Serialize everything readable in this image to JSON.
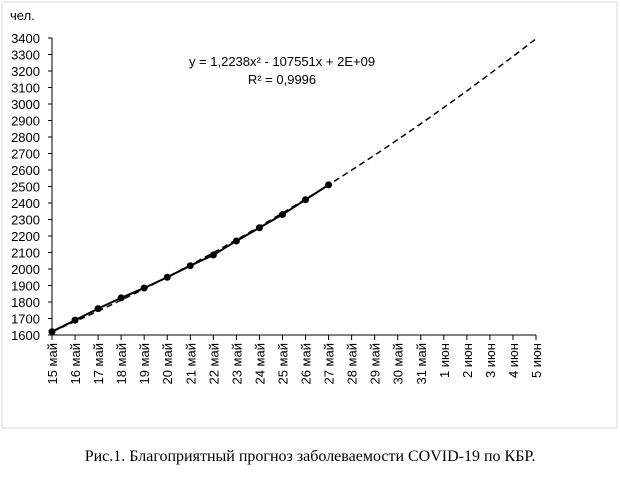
{
  "chart_data": {
    "type": "line",
    "y_label": "чел.",
    "caption": "Рис.1. Благоприятный прогноз заболеваемости COVID-19 по КБР.",
    "annotations": [
      "y = 1,2238x² - 107551x + 2E+09",
      "R² = 0,9996"
    ],
    "categories": [
      "15 май",
      "16 май",
      "17 май",
      "18 май",
      "19 май",
      "20 май",
      "21 май",
      "22 май",
      "23 май",
      "24 май",
      "25 май",
      "26 май",
      "27 май",
      "28 май",
      "29 май",
      "30 май",
      "31 май",
      "1 июн",
      "2 июн",
      "3 июн",
      "4 июн",
      "5 июн"
    ],
    "series": [
      {
        "color": "#000000",
        "values": [
          1620,
          1690,
          1760,
          1825,
          1885,
          1950,
          2020,
          2085,
          2170,
          2250,
          2330,
          2420,
          2510,
          null,
          null,
          null,
          null,
          null,
          null,
          null,
          null,
          null
        ]
      },
      {
        "color": "#000000",
        "dashed": true,
        "values": [
          1620,
          1682,
          1745,
          1811,
          1880,
          1951,
          2024,
          2099,
          2177,
          2257,
          2339,
          2424,
          2510,
          2599,
          2690,
          2784,
          2880,
          2979,
          3079,
          3183,
          3288,
          3395
        ]
      }
    ],
    "ylim": [
      1600,
      3400
    ],
    "yticks": [
      1600,
      1700,
      1800,
      1900,
      2000,
      2100,
      2200,
      2300,
      2400,
      2500,
      2600,
      2700,
      2800,
      2900,
      3000,
      3100,
      3200,
      3300,
      3400
    ],
    "grid": false
  }
}
